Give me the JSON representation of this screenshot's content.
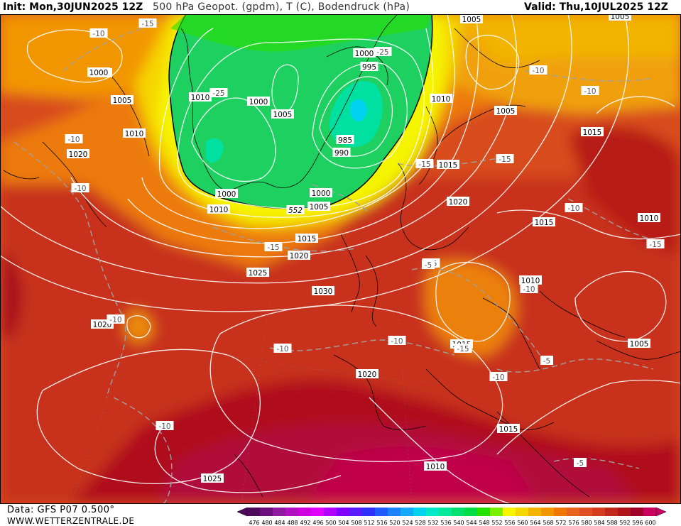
{
  "header": {
    "init": "Init: Mon,30JUN2025 12Z",
    "parameter": "500 hPa Geopot. (gpdm), T (C), Bodendruck (hPa)",
    "valid": "Valid: Thu,10JUL2025 12Z"
  },
  "footer": {
    "data_source": "Data: GFS P07 0.500°",
    "website": "WWW.WETTERZENTRALE.DE"
  },
  "colorbar": {
    "ticks": [
      "476",
      "480",
      "484",
      "488",
      "492",
      "496",
      "500",
      "504",
      "508",
      "512",
      "516",
      "520",
      "524",
      "528",
      "532",
      "536",
      "540",
      "544",
      "548",
      "552",
      "556",
      "560",
      "564",
      "568",
      "572",
      "576",
      "580",
      "584",
      "588",
      "592",
      "596",
      "600"
    ],
    "colors": [
      "#4b0a5a",
      "#6e0f7e",
      "#8f1aa0",
      "#b012c0",
      "#cf00e0",
      "#e000ff",
      "#b000ff",
      "#8000ff",
      "#5a1aff",
      "#3030ff",
      "#1f5bff",
      "#1e82ff",
      "#15aaff",
      "#00d2f0",
      "#00e8c8",
      "#00e89a",
      "#00e070",
      "#00dc46",
      "#28e000",
      "#78f000",
      "#f5f500",
      "#f5d700",
      "#f5b400",
      "#f29600",
      "#ee7800",
      "#e8641e",
      "#e05020",
      "#d43c1e",
      "#c0281a",
      "#ae1418",
      "#a00028",
      "#c80060"
    ]
  },
  "pressure_labels": [
    {
      "text": "1005"
    },
    {
      "text": "1005"
    },
    {
      "text": "1010"
    },
    {
      "text": "1000"
    },
    {
      "text": "1005"
    },
    {
      "text": "1010"
    },
    {
      "text": "1020"
    },
    {
      "text": "1010"
    },
    {
      "text": "1000"
    },
    {
      "text": "1005"
    },
    {
      "text": "1000"
    },
    {
      "text": "995"
    },
    {
      "text": "985"
    },
    {
      "text": "990"
    },
    {
      "text": "1000"
    },
    {
      "text": "1000"
    },
    {
      "text": "1010"
    },
    {
      "text": "1005"
    },
    {
      "text": "1010"
    },
    {
      "text": "1005"
    },
    {
      "text": "1015"
    },
    {
      "text": "1015"
    },
    {
      "text": "1020"
    },
    {
      "text": "1015"
    },
    {
      "text": "1010"
    },
    {
      "text": "1015"
    },
    {
      "text": "1020"
    },
    {
      "text": "1025"
    },
    {
      "text": "1030"
    },
    {
      "text": "1020"
    },
    {
      "text": "1010"
    },
    {
      "text": "1015"
    },
    {
      "text": "1005"
    },
    {
      "text": "1020"
    },
    {
      "text": "1015"
    },
    {
      "text": "1010"
    },
    {
      "text": "1025"
    }
  ],
  "temperature_labels": [
    {
      "text": "-10"
    },
    {
      "text": "-15"
    },
    {
      "text": "-25"
    },
    {
      "text": "-25"
    },
    {
      "text": "-10"
    },
    {
      "text": "-10"
    },
    {
      "text": "-10"
    },
    {
      "text": "-15"
    },
    {
      "text": "-15"
    },
    {
      "text": "-15"
    },
    {
      "text": "-15"
    },
    {
      "text": "-10"
    },
    {
      "text": "-10"
    },
    {
      "text": "-15"
    },
    {
      "text": "-10"
    },
    {
      "text": "-10"
    },
    {
      "text": "-10"
    },
    {
      "text": "-10"
    },
    {
      "text": "-10"
    },
    {
      "text": "-15"
    },
    {
      "text": "-5"
    },
    {
      "text": "-10"
    },
    {
      "text": "-5"
    },
    {
      "text": "-5"
    },
    {
      "text": "-10"
    }
  ],
  "geopotential_labels": [
    {
      "text": "552"
    }
  ]
}
